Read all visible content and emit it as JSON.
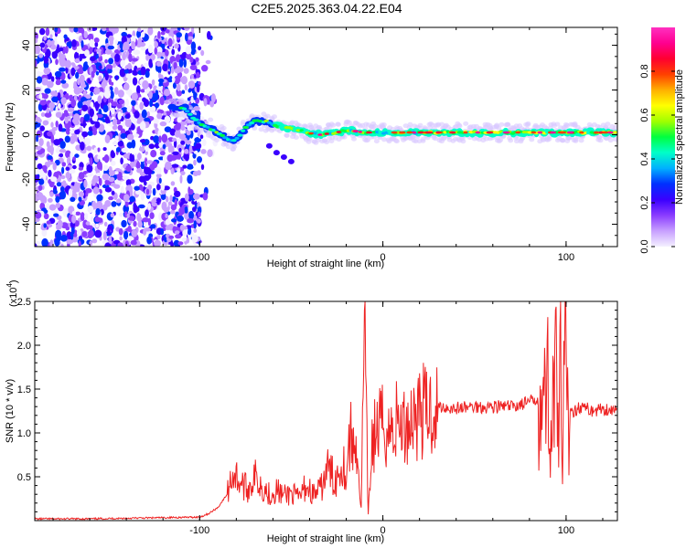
{
  "title": "C2E5.2025.363.04.22.E04",
  "chart_data": [
    {
      "type": "heatmap",
      "xlabel": "Height of straight line (km)",
      "ylabel": "Frequency (Hz)",
      "xlim": [
        -190,
        128
      ],
      "ylim": [
        -50,
        48
      ],
      "xticks": [
        -100,
        0,
        100
      ],
      "xtick_labels": [
        "-100",
        "0",
        "100"
      ],
      "yticks": [
        -40,
        -20,
        0,
        20,
        40
      ],
      "ytick_labels": [
        "-40",
        "-20",
        "0",
        "20",
        "40"
      ],
      "noise_region_x": [
        -190,
        -100
      ],
      "ridge": [
        {
          "x": -115,
          "y": 12
        },
        {
          "x": -108,
          "y": 12
        },
        {
          "x": -104,
          "y": 8
        },
        {
          "x": -100,
          "y": 5
        },
        {
          "x": -95,
          "y": 3
        },
        {
          "x": -90,
          "y": 1
        },
        {
          "x": -86,
          "y": -1
        },
        {
          "x": -82,
          "y": -3
        },
        {
          "x": -78,
          "y": 0
        },
        {
          "x": -74,
          "y": 4
        },
        {
          "x": -70,
          "y": 6
        },
        {
          "x": -64,
          "y": 6
        },
        {
          "x": -58,
          "y": 4
        },
        {
          "x": -50,
          "y": 3
        },
        {
          "x": -42,
          "y": 1
        },
        {
          "x": -34,
          "y": 0
        },
        {
          "x": -26,
          "y": 1
        },
        {
          "x": -18,
          "y": 2
        },
        {
          "x": -10,
          "y": 1
        },
        {
          "x": 0,
          "y": 1
        },
        {
          "x": 20,
          "y": 1
        },
        {
          "x": 40,
          "y": 1
        },
        {
          "x": 60,
          "y": 1
        },
        {
          "x": 80,
          "y": 1
        },
        {
          "x": 95,
          "y": 1
        },
        {
          "x": 105,
          "y": 1
        },
        {
          "x": 128,
          "y": 1
        }
      ],
      "side_branch": [
        {
          "x": -62,
          "y": -5
        },
        {
          "x": -58,
          "y": -8
        },
        {
          "x": -54,
          "y": -10
        },
        {
          "x": -50,
          "y": -12
        }
      ],
      "colorbar": {
        "label": "Normalized spectral amplitude",
        "range": [
          0,
          1
        ],
        "ticks": [
          "0.0",
          "0.2",
          "0.4",
          "0.6",
          "0.8"
        ],
        "tick_values": [
          0,
          0.2,
          0.4,
          0.6,
          0.8
        ],
        "colors": [
          "#f4f0ff",
          "#c8a0ff",
          "#8a3cff",
          "#3a00ff",
          "#0030ff",
          "#00b0ff",
          "#00ffc8",
          "#00ff40",
          "#a0ff00",
          "#ffff00",
          "#ffb000",
          "#ff4000",
          "#ff0030",
          "#ff0090",
          "#ff30c0"
        ]
      }
    },
    {
      "type": "line",
      "xlabel": "Height of straight line (km)",
      "ylabel": "SNR (10 * v/v)",
      "yscale_label": "(x10",
      "yscale_exp": "4",
      "xlim": [
        -190,
        128
      ],
      "ylim": [
        0,
        2.5
      ],
      "xticks": [
        -100,
        0,
        100
      ],
      "xtick_labels": [
        "-100",
        "0",
        "100"
      ],
      "yticks": [
        0.5,
        1.0,
        1.5,
        2.0,
        2.5
      ],
      "ytick_labels": [
        "0.5",
        "1.0",
        "1.5",
        "2.0",
        "2.5"
      ],
      "line_color": "#ee2222",
      "series": [
        {
          "name": "SNR",
          "x": [
            -190,
            -160,
            -130,
            -100,
            -95,
            -90,
            -85,
            -82,
            -78,
            -74,
            -70,
            -66,
            -62,
            -58,
            -54,
            -50,
            -46,
            -42,
            -38,
            -34,
            -30,
            -26,
            -22,
            -20,
            -18,
            -16,
            -14,
            -12,
            -10,
            -8,
            -6,
            -4,
            -2,
            0,
            4,
            8,
            12,
            16,
            20,
            25,
            30,
            40,
            50,
            60,
            70,
            80,
            85,
            88,
            90,
            92,
            94,
            96,
            97,
            98,
            99,
            100,
            101,
            102,
            104,
            108,
            115,
            120,
            128
          ],
          "y": [
            0.02,
            0.02,
            0.03,
            0.04,
            0.08,
            0.15,
            0.3,
            0.55,
            0.45,
            0.35,
            0.5,
            0.4,
            0.3,
            0.35,
            0.28,
            0.32,
            0.25,
            0.4,
            0.3,
            0.35,
            0.6,
            0.45,
            0.7,
            0.5,
            1.0,
            0.8,
            0.9,
            0.05,
            2.2,
            0.05,
            0.9,
            1.0,
            1.05,
            1.1,
            1.0,
            1.15,
            1.05,
            1.2,
            1.25,
            1.25,
            1.3,
            1.28,
            1.3,
            1.3,
            1.3,
            1.35,
            1.4,
            1.3,
            1.6,
            0.9,
            1.9,
            0.6,
            2.1,
            0.2,
            1.8,
            2.5,
            0.9,
            1.3,
            1.25,
            1.3,
            1.25,
            1.28,
            1.25
          ]
        }
      ]
    }
  ]
}
